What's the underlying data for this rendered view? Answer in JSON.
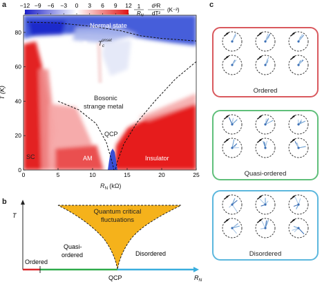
{
  "figure": {
    "panel_a": {
      "letter": "a",
      "colorbar_ticks": [
        "−12",
        "−9",
        "−6",
        "−3",
        "0",
        "3",
        "6",
        "9",
        "12"
      ],
      "colorbar_label_prefix": "1",
      "colorbar_label_den": "R",
      "colorbar_label_den_sub": "N",
      "colorbar_label_frac_top": "d²R",
      "colorbar_label_frac_bot": "dT²",
      "colorbar_label_unit": "(K⁻²)",
      "colorbar_colors": [
        "#1b1fc8",
        "#ffffff",
        "#e01515"
      ],
      "ylabel": "T (K)",
      "xlabel": "R",
      "xlabel_sub": "N",
      "xlabel_unit": "(kΩ)",
      "region_labels": {
        "normal_state": "Normal state",
        "tc_onset_main": "T",
        "tc_onset_sub": "c",
        "tc_onset_sup": "onset",
        "bosonic_line1": "Bosonic",
        "bosonic_line2": "strange metal",
        "qcp": "QCP",
        "sc": "SC",
        "am": "AM",
        "insulator": "Insulator"
      }
    },
    "panel_b": {
      "letter": "b",
      "ylabel": "T",
      "xlabel": "R",
      "xlabel_sub": "N",
      "qcf_line1": "Quantum critical",
      "qcf_line2": "fluctuations",
      "ordered": "Ordered",
      "quasi_line1": "Quasi-",
      "quasi_line2": "ordered",
      "disordered": "Disordered",
      "qcp": "QCP",
      "fan_color": "#f5b21b",
      "axis_colors": [
        "#d9262a",
        "#2eaa4a",
        "#3aaede"
      ]
    },
    "panel_c": {
      "letter": "c",
      "boxes": [
        {
          "label": "Ordered",
          "border": "#d9585d"
        },
        {
          "label": "Quasi-ordered",
          "border": "#5fbf7a"
        },
        {
          "label": "Disordered",
          "border": "#5bb7dd"
        }
      ]
    }
  },
  "chart_data": {
    "type": "heatmap",
    "title": "",
    "xlabel": "RN (kΩ)",
    "ylabel": "T (K)",
    "xlim": [
      0,
      25
    ],
    "ylim": [
      0,
      90
    ],
    "x_ticks": [
      0,
      5,
      10,
      15,
      20,
      25
    ],
    "y_ticks": [
      0,
      20,
      40,
      60,
      80
    ],
    "color_scale": {
      "min": -12,
      "max": 12,
      "ticks": [
        -12,
        -9,
        -6,
        -3,
        0,
        3,
        6,
        9,
        12
      ]
    },
    "boundaries": [
      {
        "name": "Tc onset",
        "points": [
          [
            0.5,
            86
          ],
          [
            5,
            85.5
          ],
          [
            10,
            83.5
          ],
          [
            14,
            81
          ],
          [
            17,
            78
          ],
          [
            20,
            76.5
          ],
          [
            25,
            75
          ]
        ]
      },
      {
        "name": "QCP left",
        "points": [
          [
            5,
            40
          ],
          [
            8,
            35
          ],
          [
            10.5,
            27
          ],
          [
            12,
            16
          ],
          [
            12.8,
            5
          ],
          [
            13.1,
            0
          ]
        ]
      },
      {
        "name": "QCP right",
        "points": [
          [
            25,
            63
          ],
          [
            22,
            53
          ],
          [
            19,
            40
          ],
          [
            16.5,
            28
          ],
          [
            14.5,
            15
          ],
          [
            13.6,
            5
          ],
          [
            13.3,
            0
          ]
        ]
      }
    ]
  }
}
